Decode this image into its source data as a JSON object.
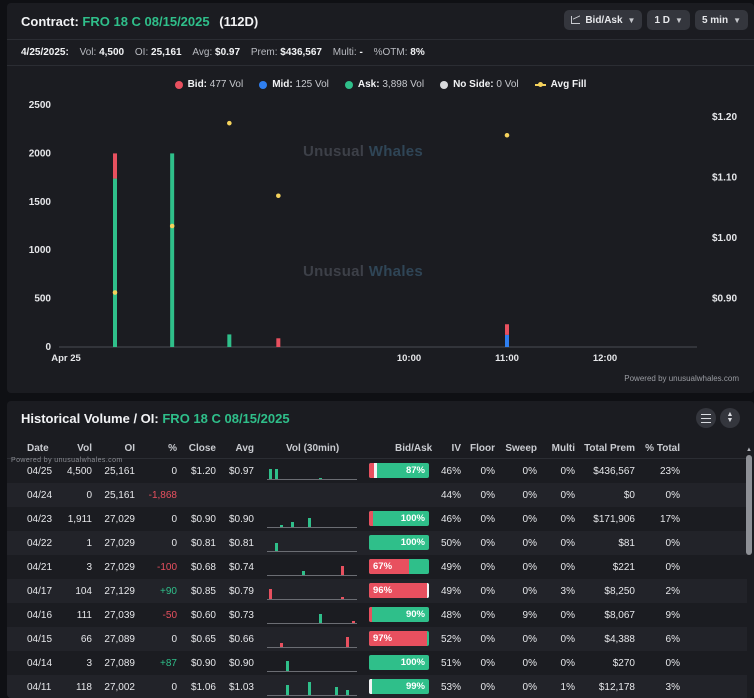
{
  "contract": {
    "label": "Contract:",
    "symbol": "FRO 18 C 08/15/2025",
    "dte": "(112D)",
    "controls": [
      {
        "label": "Bid/Ask",
        "icon": "chart-icon"
      },
      {
        "label": "1 D"
      },
      {
        "label": "5 min"
      }
    ]
  },
  "stats": {
    "date": "4/25/2025:",
    "vol_label": "Vol:",
    "vol": "4,500",
    "oi_label": "OI:",
    "oi": "25,161",
    "avg_label": "Avg:",
    "avg": "$0.97",
    "prem_label": "Prem:",
    "prem": "$436,567",
    "multi_label": "Multi:",
    "multi": "-",
    "otm_label": "%OTM:",
    "otm": "8%"
  },
  "legend": [
    {
      "name": "Bid:",
      "value": "477 Vol",
      "color": "#e8505f",
      "kind": "dot"
    },
    {
      "name": "Mid:",
      "value": "125 Vol",
      "color": "#2f7ff0",
      "kind": "dot"
    },
    {
      "name": "Ask:",
      "value": "3,898 Vol",
      "color": "#2fbf8a",
      "kind": "dot"
    },
    {
      "name": "No Side:",
      "value": "0 Vol",
      "color": "#d8d9dc",
      "kind": "dot"
    },
    {
      "name": "Avg Fill",
      "value": "",
      "color": "#f5d25c",
      "kind": "line"
    }
  ],
  "watermark": {
    "part1": "Unusual",
    "part2": "Whales"
  },
  "powered_by": "Powered by unusualwhales.com",
  "chart_data": {
    "type": "bar",
    "stacked": true,
    "x_ticks": [
      {
        "label": "Apr 25",
        "t": 0
      },
      {
        "label": "10:00",
        "t": 30
      },
      {
        "label": "11:00",
        "t": 90
      },
      {
        "label": "12:00",
        "t": 150
      }
    ],
    "x_range": [
      0,
      195
    ],
    "y_left": {
      "ticks": [
        0,
        500,
        1000,
        1500,
        2000,
        2500
      ],
      "range": [
        0,
        2500
      ]
    },
    "y_right": {
      "ticks": [
        "$0.90",
        "$1.00",
        "$1.10",
        "$1.20"
      ],
      "range": [
        0.82,
        1.22
      ],
      "values": [
        0.9,
        1.0,
        1.1,
        1.2
      ]
    },
    "series": [
      {
        "name": "Ask",
        "color": "#2fbf8a",
        "points": [
          {
            "t": -180,
            "v": 1740
          },
          {
            "t": -145,
            "v": 2000
          },
          {
            "t": -110,
            "v": 130
          },
          {
            "t": 60,
            "v": 0
          }
        ]
      },
      {
        "name": "Bid",
        "color": "#e8505f",
        "points": [
          {
            "t": -180,
            "v": 260
          },
          {
            "t": -145,
            "v": 0
          },
          {
            "t": -110,
            "v": 0
          },
          {
            "t": -80,
            "v": 90
          },
          {
            "t": 60,
            "v": 110
          }
        ]
      },
      {
        "name": "Mid",
        "color": "#2f7ff0",
        "points": [
          {
            "t": 60,
            "v": 125
          }
        ]
      }
    ],
    "avg_fill": [
      {
        "t": -180,
        "price": 0.91
      },
      {
        "t": -145,
        "price": 1.02
      },
      {
        "t": -110,
        "price": 1.19
      },
      {
        "t": -80,
        "price": 1.07
      },
      {
        "t": 60,
        "price": 1.17
      }
    ]
  },
  "history": {
    "title": "Historical Volume / OI:",
    "symbol": "FRO 18 C 08/15/2025",
    "powered": "Powered by unusualwhales.com",
    "columns": [
      "Date",
      "Vol",
      "OI",
      "%",
      "Close",
      "Avg",
      "Vol (30min)",
      "Bid/Ask",
      "IV",
      "Floor",
      "Sweep",
      "Multi",
      "Total Prem",
      "% Total"
    ],
    "rows": [
      {
        "date": "04/25",
        "vol": "4,500",
        "oi": "25,161",
        "chg": "0",
        "chg_sign": 0,
        "close": "$1.20",
        "avg": "$0.97",
        "spark": [
          0.62,
          0.62,
          0,
          0,
          0,
          0,
          0,
          0,
          0,
          0.08,
          0,
          0,
          0,
          0,
          0,
          0
        ],
        "ba": {
          "bid": 0.08,
          "mid": 0.05,
          "label": "87%",
          "side": "ask"
        },
        "iv": "46%",
        "floor": "0%",
        "sweep": "0%",
        "multi": "0%",
        "prem": "$436,567",
        "pct": "23%"
      },
      {
        "date": "04/24",
        "vol": "0",
        "oi": "25,161",
        "chg": "-1,868",
        "chg_sign": -1,
        "close": "",
        "avg": "",
        "spark": null,
        "ba": null,
        "iv": "44%",
        "floor": "0%",
        "sweep": "0%",
        "multi": "0%",
        "prem": "$0",
        "pct": "0%"
      },
      {
        "date": "04/23",
        "vol": "1,911",
        "oi": "27,029",
        "chg": "0",
        "chg_sign": 0,
        "close": "$0.90",
        "avg": "$0.90",
        "spark": [
          0,
          0,
          0.15,
          0,
          0.3,
          0,
          0,
          0.55,
          0,
          0,
          0,
          0,
          0,
          0,
          0,
          0
        ],
        "ba": {
          "bid": 0.06,
          "mid": 0,
          "label": "100%",
          "side": "ask"
        },
        "iv": "46%",
        "floor": "0%",
        "sweep": "0%",
        "multi": "0%",
        "prem": "$171,906",
        "pct": "17%"
      },
      {
        "date": "04/22",
        "vol": "1",
        "oi": "27,029",
        "chg": "0",
        "chg_sign": 0,
        "close": "$0.81",
        "avg": "$0.81",
        "spark": [
          0,
          0.5,
          0,
          0,
          0,
          0,
          0,
          0,
          0,
          0,
          0,
          0,
          0,
          0,
          0,
          0
        ],
        "ba": {
          "bid": 0,
          "mid": 0,
          "label": "100%",
          "side": "ask"
        },
        "iv": "50%",
        "floor": "0%",
        "sweep": "0%",
        "multi": "0%",
        "prem": "$81",
        "pct": "0%"
      },
      {
        "date": "04/21",
        "vol": "3",
        "oi": "27,029",
        "chg": "-100",
        "chg_sign": -1,
        "close": "$0.68",
        "avg": "$0.74",
        "spark": [
          0,
          0,
          0,
          0,
          0,
          0,
          0.25,
          0,
          0,
          0,
          0,
          0,
          0,
          0.55,
          0,
          0
        ],
        "ba": {
          "bid": 0.67,
          "mid": 0,
          "label": "67%",
          "side": "bid"
        },
        "iv": "49%",
        "floor": "0%",
        "sweep": "0%",
        "multi": "0%",
        "prem": "$221",
        "pct": "0%"
      },
      {
        "date": "04/17",
        "vol": "104",
        "oi": "27,129",
        "chg": "+90",
        "chg_sign": 1,
        "close": "$0.85",
        "avg": "$0.79",
        "spark": [
          0.6,
          0,
          0,
          0,
          0,
          0,
          0,
          0,
          0,
          0,
          0,
          0,
          0,
          0.15,
          0,
          0
        ],
        "ba": {
          "bid": 0.96,
          "mid": 0.04,
          "label": "96%",
          "side": "bid"
        },
        "iv": "49%",
        "floor": "0%",
        "sweep": "0%",
        "multi": "3%",
        "prem": "$8,250",
        "pct": "2%"
      },
      {
        "date": "04/16",
        "vol": "111",
        "oi": "27,039",
        "chg": "-50",
        "chg_sign": -1,
        "close": "$0.60",
        "avg": "$0.73",
        "spark": [
          0,
          0,
          0,
          0,
          0,
          0,
          0,
          0,
          0,
          0.55,
          0,
          0,
          0,
          0,
          0,
          0.15
        ],
        "ba": {
          "bid": 0.05,
          "mid": 0,
          "label": "90%",
          "side": "ask"
        },
        "iv": "48%",
        "floor": "0%",
        "sweep": "9%",
        "multi": "0%",
        "prem": "$8,067",
        "pct": "9%"
      },
      {
        "date": "04/15",
        "vol": "66",
        "oi": "27,089",
        "chg": "0",
        "chg_sign": 0,
        "close": "$0.65",
        "avg": "$0.66",
        "spark": [
          0,
          0,
          0.25,
          0,
          0,
          0,
          0,
          0,
          0,
          0,
          0,
          0,
          0,
          0,
          0.6,
          0
        ],
        "ba": {
          "bid": 0.97,
          "mid": 0,
          "label": "97%",
          "side": "bid"
        },
        "iv": "52%",
        "floor": "0%",
        "sweep": "0%",
        "multi": "0%",
        "prem": "$4,388",
        "pct": "6%"
      },
      {
        "date": "04/14",
        "vol": "3",
        "oi": "27,089",
        "chg": "+87",
        "chg_sign": 1,
        "close": "$0.90",
        "avg": "$0.90",
        "spark": [
          0,
          0,
          0,
          0.6,
          0,
          0,
          0,
          0,
          0,
          0,
          0,
          0,
          0,
          0,
          0,
          0
        ],
        "ba": {
          "bid": 0,
          "mid": 0,
          "label": "100%",
          "side": "ask"
        },
        "iv": "51%",
        "floor": "0%",
        "sweep": "0%",
        "multi": "0%",
        "prem": "$270",
        "pct": "0%"
      },
      {
        "date": "04/11",
        "vol": "118",
        "oi": "27,002",
        "chg": "0",
        "chg_sign": 0,
        "close": "$1.06",
        "avg": "$1.03",
        "spark": [
          0,
          0,
          0,
          0.6,
          0,
          0,
          0,
          0.8,
          0,
          0,
          0,
          0,
          0.5,
          0,
          0.3,
          0
        ],
        "ba": {
          "bid": 0,
          "mid": 0.03,
          "label": "99%",
          "side": "ask"
        },
        "iv": "53%",
        "floor": "0%",
        "sweep": "0%",
        "multi": "1%",
        "prem": "$12,178",
        "pct": "3%"
      }
    ]
  }
}
